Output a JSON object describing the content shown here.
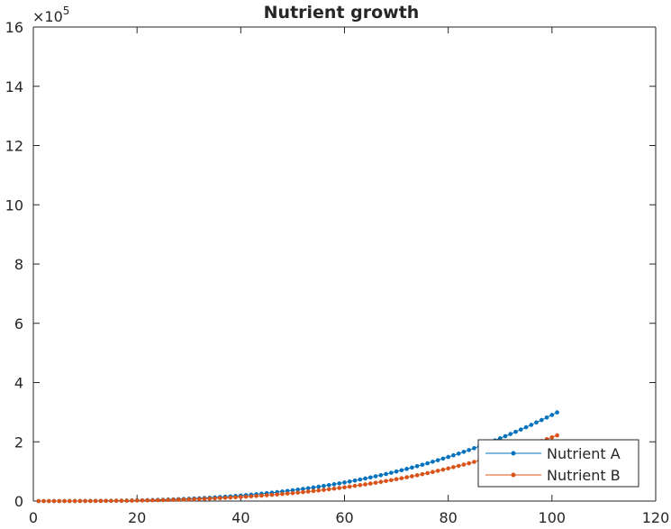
{
  "chart_data": {
    "type": "line",
    "title": "Nutrient growth",
    "xlabel": "",
    "ylabel": "",
    "xlim": [
      0,
      120
    ],
    "ylim": [
      0,
      1600000
    ],
    "x_ticks": [
      0,
      20,
      40,
      60,
      80,
      100,
      120
    ],
    "y_ticks": [
      0,
      200000,
      400000,
      600000,
      800000,
      1000000,
      1200000,
      1400000,
      1600000
    ],
    "y_tick_labels": [
      "0",
      "2",
      "4",
      "6",
      "8",
      "10",
      "12",
      "14",
      "16"
    ],
    "y_exponent_label": "×10",
    "y_exponent_power": "5",
    "x": [
      1,
      101
    ],
    "step": 1,
    "series": [
      {
        "name": "Nutrient A",
        "color": "#0072BD",
        "marker": "dot",
        "x_start": 1,
        "x_end": 101,
        "a": 29.06,
        "c": -55.6,
        "d": -2100
      },
      {
        "name": "Nutrient B",
        "color": "#D95319",
        "marker": "dot",
        "x_start": 1,
        "x_end": 101,
        "a": 21.52,
        "c": -55.6,
        "d": -2100
      }
    ],
    "grid": false,
    "legend": "bottom-right",
    "colors": {
      "axis": "#262626",
      "background": "#ffffff"
    }
  }
}
